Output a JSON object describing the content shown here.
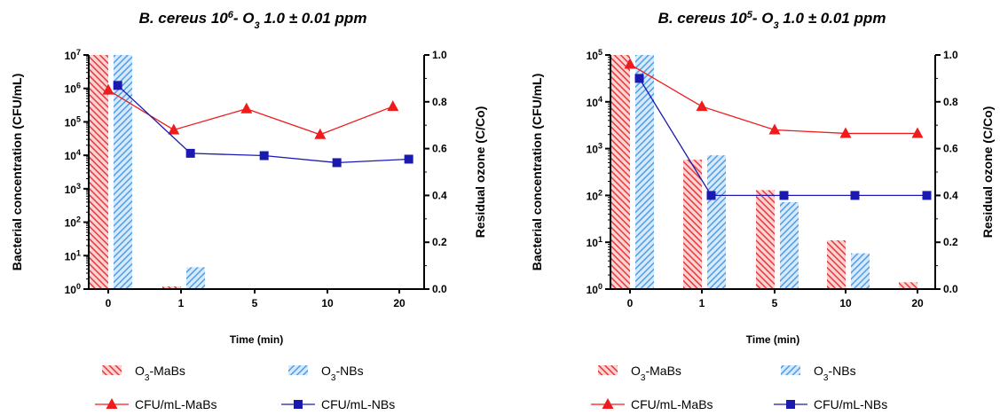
{
  "legend": {
    "o3_mabs": {
      "text": "O",
      "sub": "3",
      "rest": "-MaBs"
    },
    "o3_nbs": {
      "text": "O",
      "sub": "3",
      "rest": "-NBs"
    },
    "cfu_mabs": "CFU/mL-MaBs",
    "cfu_nbs": "CFU/mL-NBs"
  },
  "colors": {
    "mabs": "#e8383b",
    "nbs": "#4d9fe8",
    "cfu_mabs": "#ee1c1c",
    "cfu_nbs": "#1a1ab0"
  },
  "chart_data": [
    {
      "type": "bar",
      "title": {
        "a": "B. cereus 10",
        "sup": "6",
        "b": "- O",
        "sub": "3",
        "c": " 1.0 ± 0.01 ppm"
      },
      "xlabel": "Time (min)",
      "ylabel": "Bacterial concentration (CFU/mL)",
      "y2label": "Residual ozone (C/Co)",
      "categories": [
        "0",
        "1",
        "5",
        "10",
        "20"
      ],
      "yscale": "log",
      "ylim": [
        1,
        10000000
      ],
      "yticks": [
        {
          "base": "10",
          "exp": "0"
        },
        {
          "base": "10",
          "exp": "1"
        },
        {
          "base": "10",
          "exp": "2"
        },
        {
          "base": "10",
          "exp": "3"
        },
        {
          "base": "10",
          "exp": "4"
        },
        {
          "base": "10",
          "exp": "5"
        },
        {
          "base": "10",
          "exp": "6"
        },
        {
          "base": "10",
          "exp": "7"
        }
      ],
      "y2lim": [
        0,
        1
      ],
      "y2ticks": [
        "0.0",
        "0.2",
        "0.4",
        "0.6",
        "0.8",
        "1.0"
      ],
      "bar_series": [
        {
          "name": "O3-MaBs",
          "values": [
            10000000,
            1.2,
            null,
            null,
            null
          ]
        },
        {
          "name": "O3-NBs",
          "values": [
            10000000,
            4.5,
            null,
            null,
            null
          ]
        }
      ],
      "line_series": [
        {
          "name": "CFU/mL-MaBs",
          "marker": "triangle",
          "x": [
            0,
            0.9,
            1.9,
            2.9,
            3.9
          ],
          "values": [
            0.85,
            0.68,
            0.77,
            0.66,
            0.78
          ]
        },
        {
          "name": "CFU/mL-NBs",
          "marker": "square",
          "x": [
            0.13,
            1.13,
            2.13,
            3.13,
            4.13
          ],
          "values": [
            0.87,
            0.58,
            0.57,
            0.54,
            0.555
          ]
        }
      ]
    },
    {
      "type": "bar",
      "title": {
        "a": "B. cereus 10",
        "sup": "5",
        "b": "- O",
        "sub": "3",
        "c": " 1.0 ± 0.01 ppm"
      },
      "xlabel": "Time (min)",
      "ylabel": "Bacterial concentration (CFU/mL)",
      "y2label": "Residual ozone (C/Co)",
      "categories": [
        "0",
        "1",
        "5",
        "10",
        "20"
      ],
      "yscale": "log",
      "ylim": [
        1,
        100000
      ],
      "yticks": [
        {
          "base": "10",
          "exp": "0"
        },
        {
          "base": "10",
          "exp": "1"
        },
        {
          "base": "10",
          "exp": "2"
        },
        {
          "base": "10",
          "exp": "3"
        },
        {
          "base": "10",
          "exp": "4"
        },
        {
          "base": "10",
          "exp": "5"
        }
      ],
      "y2lim": [
        0,
        1
      ],
      "y2ticks": [
        "0.0",
        "0.2",
        "0.4",
        "0.6",
        "0.8",
        "1.0"
      ],
      "bar_series": [
        {
          "name": "O3-MaBs",
          "values": [
            100000,
            580,
            130,
            11,
            1.4
          ]
        },
        {
          "name": "O3-NBs",
          "values": [
            100000,
            720,
            72,
            5.8,
            null
          ]
        }
      ],
      "line_series": [
        {
          "name": "CFU/mL-MaBs",
          "marker": "triangle",
          "x": [
            0,
            1,
            2,
            3,
            4
          ],
          "values": [
            0.96,
            0.78,
            0.68,
            0.665,
            0.665
          ]
        },
        {
          "name": "CFU/mL-NBs",
          "marker": "square",
          "x": [
            0.13,
            1.13,
            2.13,
            3.13,
            4.13
          ],
          "values": [
            0.9,
            0.4,
            0.4,
            0.4,
            0.4
          ]
        }
      ]
    }
  ]
}
